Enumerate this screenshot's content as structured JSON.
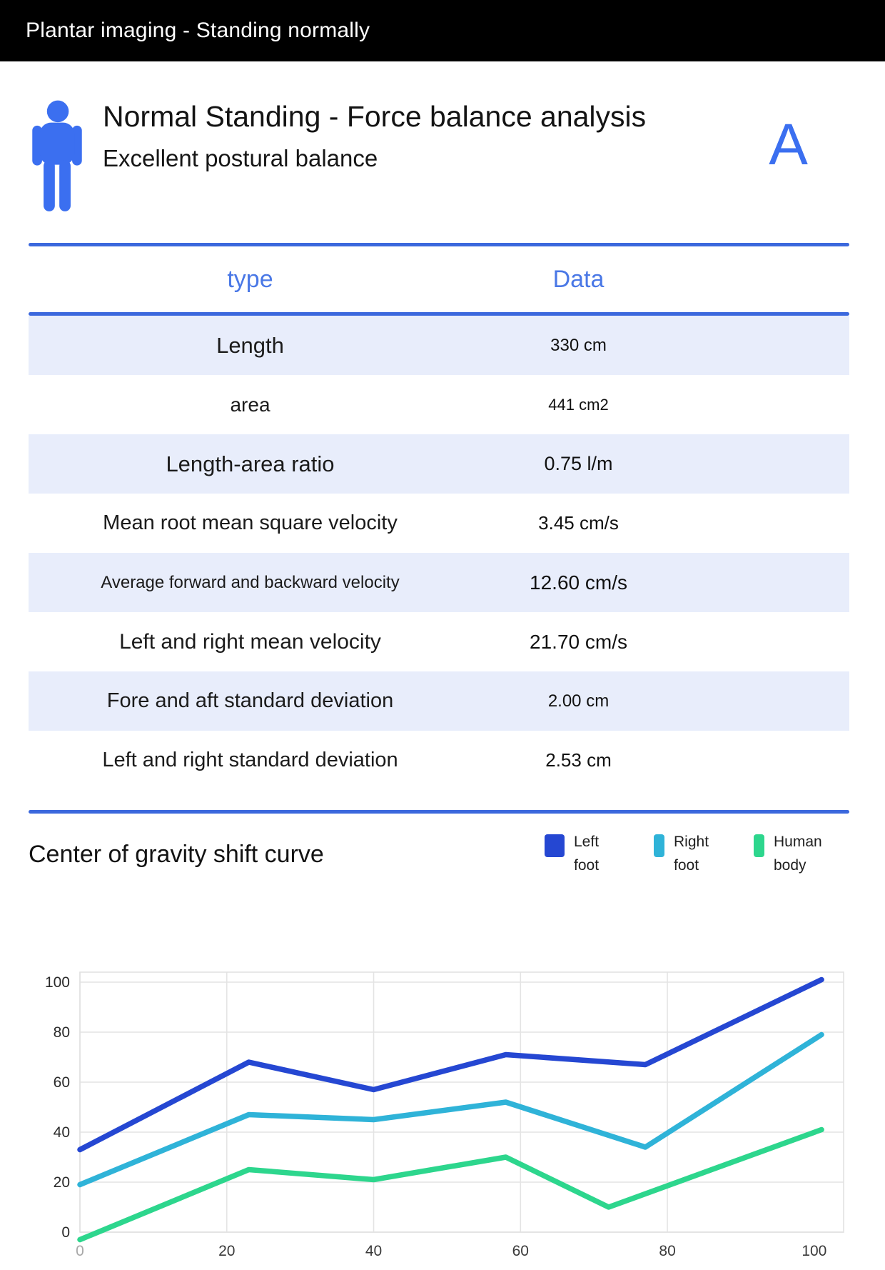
{
  "top_bar": {
    "title": "Plantar imaging - Standing normally"
  },
  "header": {
    "title": "Normal Standing - Force balance analysis",
    "subtitle": "Excellent postural balance",
    "grade": "A",
    "icon": "person-icon",
    "accent_color": "#3b6ff0"
  },
  "table": {
    "headers": {
      "type": "type",
      "data": "Data"
    },
    "stripe_color": "#e8edfb",
    "divider_color": "#3b68dd",
    "rows": [
      {
        "label": "Length",
        "value": "330 cm"
      },
      {
        "label": "area",
        "value": "441 cm2"
      },
      {
        "label": "Length-area ratio",
        "value": "0.75 l/m"
      },
      {
        "label": "Mean root mean square velocity",
        "value": "3.45 cm/s"
      },
      {
        "label": "Average forward and backward velocity",
        "value": "12.60 cm/s"
      },
      {
        "label": "Left and right mean velocity",
        "value": "21.70 cm/s"
      },
      {
        "label": "Fore and aft standard deviation",
        "value": "2.00 cm"
      },
      {
        "label": "Left and right standard deviation",
        "value": "2.53 cm"
      }
    ]
  },
  "chart_section": {
    "title": "Center of gravity shift curve"
  },
  "chart_data": {
    "type": "line",
    "title": "Center of gravity shift curve",
    "xlabel": "",
    "ylabel": "",
    "x_ticks": [
      0,
      20,
      40,
      60,
      80,
      100
    ],
    "y_ticks": [
      0,
      20,
      40,
      60,
      80,
      100
    ],
    "xlim": [
      0,
      104
    ],
    "ylim": [
      -4,
      104
    ],
    "grid": true,
    "legend_position": "top-right",
    "series": [
      {
        "name": "Left foot",
        "color": "#2547d2",
        "x": [
          0,
          23,
          40,
          58,
          77,
          101
        ],
        "y": [
          33,
          68,
          57,
          71,
          67,
          101
        ]
      },
      {
        "name": "Right foot",
        "color": "#2fb3d8",
        "x": [
          0,
          23,
          40,
          58,
          77,
          101
        ],
        "y": [
          19,
          47,
          45,
          52,
          34,
          79
        ]
      },
      {
        "name": "Human body",
        "color": "#2dd68d",
        "x": [
          0,
          23,
          40,
          58,
          72,
          101
        ],
        "y": [
          -3,
          25,
          21,
          30,
          10,
          41
        ]
      }
    ]
  }
}
